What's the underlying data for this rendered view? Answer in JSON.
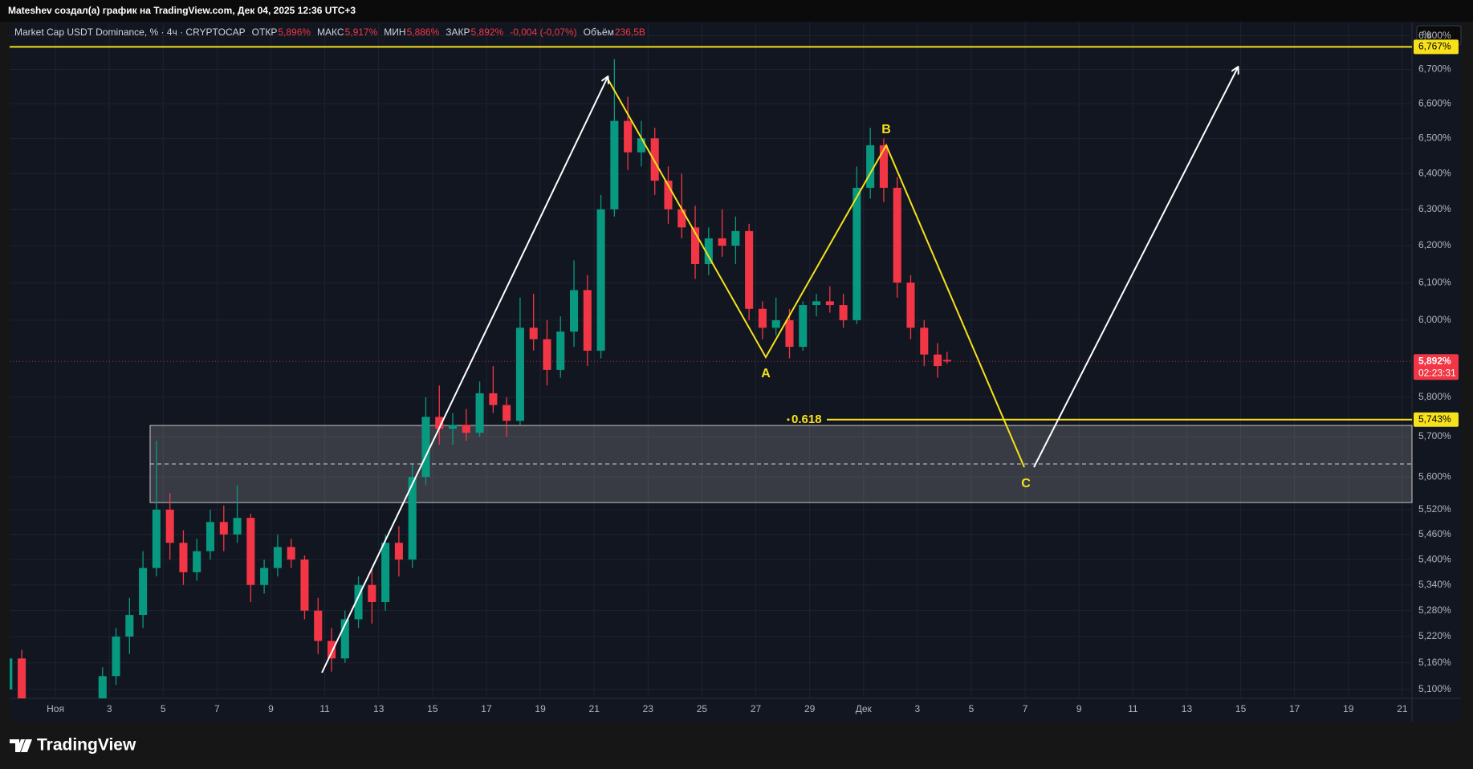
{
  "header": "Mateshev создал(а) график на TradingView.com, Дек 04, 2025 12:36 UTC+3",
  "logo": "TradingView",
  "chart_data": {
    "type": "candlestick",
    "title": "Market Cap USDT Dominance, % · 4ч · CRYPTOCAP",
    "ohlc_legend": [
      {
        "label": "ОТКР",
        "value": "5,896%"
      },
      {
        "label": "МАКС",
        "value": "5,917%"
      },
      {
        "label": "МИН",
        "value": "5,886%"
      },
      {
        "label": "ЗАКР",
        "value": "5,892%"
      }
    ],
    "change": "-0,004 (-0,07%)",
    "volume": {
      "label": "Объём",
      "value": "236,5B"
    },
    "axis_unit": "%",
    "x": [
      -0.75,
      -0.25,
      2.75,
      3.25,
      3.75,
      4.25,
      4.75,
      5.25,
      5.75,
      6.25,
      6.75,
      7.25,
      7.75,
      8.25,
      8.75,
      9.25,
      9.75,
      10.25,
      10.75,
      11.25,
      11.75,
      12.25,
      12.75,
      13.25,
      13.75,
      14.25,
      14.75,
      15.25,
      15.75,
      16.25,
      16.75,
      17.25,
      17.75,
      18.25,
      18.75,
      19.25,
      19.75,
      20.25,
      20.75,
      21.25,
      21.75,
      22.25,
      22.75,
      23.25,
      23.75,
      24.25,
      24.75,
      25.25,
      25.75,
      26.25,
      26.75,
      27.25,
      27.75,
      28.25,
      28.75,
      29.25,
      29.75,
      30.25,
      30.75,
      31.25,
      31.75,
      32.25,
      32.75,
      33.25,
      33.75,
      34.1
    ],
    "open": [
      5.1,
      5.17,
      5.08,
      5.13,
      5.22,
      5.27,
      5.38,
      5.52,
      5.44,
      5.37,
      5.42,
      5.49,
      5.46,
      5.5,
      5.34,
      5.38,
      5.43,
      5.4,
      5.28,
      5.21,
      5.17,
      5.26,
      5.34,
      5.3,
      5.44,
      5.4,
      5.6,
      5.75,
      5.72,
      5.73,
      5.71,
      5.81,
      5.78,
      5.74,
      5.98,
      5.95,
      5.87,
      5.97,
      6.08,
      5.92,
      6.3,
      6.55,
      6.46,
      6.5,
      6.38,
      6.3,
      6.25,
      6.15,
      6.22,
      6.2,
      6.24,
      6.03,
      5.98,
      6.0,
      5.93,
      6.04,
      6.05,
      6.04,
      6.0,
      6.36,
      6.48,
      6.36,
      6.1,
      5.98,
      5.91,
      5.896
    ],
    "high": [
      5.18,
      5.19,
      5.15,
      5.24,
      5.31,
      5.42,
      5.69,
      5.56,
      5.47,
      5.45,
      5.52,
      5.53,
      5.58,
      5.51,
      5.4,
      5.46,
      5.45,
      5.41,
      5.31,
      5.24,
      5.28,
      5.36,
      5.38,
      5.46,
      5.48,
      5.63,
      5.8,
      5.83,
      5.76,
      5.77,
      5.84,
      5.88,
      5.8,
      6.06,
      6.07,
      6.0,
      6.01,
      6.16,
      6.12,
      6.34,
      6.73,
      6.62,
      6.55,
      6.53,
      6.42,
      6.4,
      6.31,
      6.25,
      6.3,
      6.28,
      6.26,
      6.05,
      6.06,
      6.03,
      6.05,
      6.07,
      6.09,
      6.07,
      6.42,
      6.53,
      6.5,
      6.39,
      6.12,
      6.0,
      5.94,
      5.917
    ],
    "low": [
      5.07,
      5.05,
      5.06,
      5.11,
      5.18,
      5.24,
      5.36,
      5.4,
      5.34,
      5.35,
      5.4,
      5.42,
      5.44,
      5.3,
      5.32,
      5.36,
      5.38,
      5.26,
      5.18,
      5.14,
      5.16,
      5.24,
      5.25,
      5.28,
      5.36,
      5.38,
      5.58,
      5.68,
      5.68,
      5.69,
      5.7,
      5.76,
      5.7,
      5.73,
      5.92,
      5.83,
      5.85,
      5.93,
      5.88,
      5.9,
      6.28,
      6.41,
      6.42,
      6.34,
      6.26,
      6.22,
      6.11,
      6.12,
      6.17,
      6.15,
      6.0,
      5.95,
      5.96,
      5.9,
      5.92,
      6.01,
      6.02,
      5.98,
      5.99,
      6.33,
      6.32,
      6.06,
      5.95,
      5.88,
      5.85,
      5.886
    ],
    "close": [
      5.17,
      5.06,
      5.13,
      5.22,
      5.27,
      5.38,
      5.52,
      5.44,
      5.37,
      5.42,
      5.49,
      5.46,
      5.5,
      5.34,
      5.38,
      5.43,
      5.4,
      5.28,
      5.21,
      5.17,
      5.26,
      5.34,
      5.3,
      5.44,
      5.4,
      5.6,
      5.75,
      5.72,
      5.73,
      5.71,
      5.81,
      5.78,
      5.74,
      5.98,
      5.95,
      5.87,
      5.97,
      6.08,
      5.92,
      6.3,
      6.55,
      6.46,
      6.5,
      6.38,
      6.3,
      6.25,
      6.15,
      6.22,
      6.2,
      6.24,
      6.03,
      5.98,
      6.0,
      5.93,
      6.04,
      6.05,
      6.04,
      6.0,
      6.36,
      6.48,
      6.36,
      6.1,
      5.98,
      5.91,
      5.88,
      5.892
    ],
    "up_color": "#089981",
    "down_color": "#f23645",
    "xlim": [
      -0.7,
      51.36
    ],
    "xticks": [
      {
        "value": 1,
        "label": "Ноя"
      },
      3,
      5,
      7,
      9,
      11,
      13,
      15,
      17,
      19,
      21,
      23,
      25,
      27,
      29,
      {
        "value": 31,
        "label": "Дек"
      },
      {
        "value": 33,
        "label": "3"
      },
      {
        "value": 35,
        "label": "5"
      },
      {
        "value": 37,
        "label": "7"
      },
      {
        "value": 39,
        "label": "9"
      },
      {
        "value": 41,
        "label": "11"
      },
      {
        "value": 43,
        "label": "13"
      },
      {
        "value": 45,
        "label": "15"
      },
      {
        "value": 47,
        "label": "17"
      },
      {
        "value": 49,
        "label": "19"
      },
      {
        "value": 51,
        "label": "21"
      }
    ],
    "ylim": [
      5.08,
      6.84
    ],
    "log_scale": true,
    "grid": true,
    "yticks": [
      {
        "value": 5.1,
        "label": "5,100%"
      },
      {
        "value": 5.16,
        "label": "5,160%"
      },
      {
        "value": 5.22,
        "label": "5,220%"
      },
      {
        "value": 5.28,
        "label": "5,280%"
      },
      {
        "value": 5.34,
        "label": "5,340%"
      },
      {
        "value": 5.4,
        "label": "5,400%"
      },
      {
        "value": 5.46,
        "label": "5,460%"
      },
      {
        "value": 5.52,
        "label": "5,520%"
      },
      {
        "value": 5.6,
        "label": "5,600%"
      },
      {
        "value": 5.7,
        "label": "5,700%"
      },
      {
        "value": 5.8,
        "label": "5,800%"
      },
      {
        "value": 6.0,
        "label": "6,000%"
      },
      {
        "value": 6.1,
        "label": "6,100%"
      },
      {
        "value": 6.2,
        "label": "6,200%"
      },
      {
        "value": 6.3,
        "label": "6,300%"
      },
      {
        "value": 6.4,
        "label": "6,400%"
      },
      {
        "value": 6.5,
        "label": "6,500%"
      },
      {
        "value": 6.6,
        "label": "6,600%"
      },
      {
        "value": 6.7,
        "label": "6,700%"
      },
      {
        "value": 6.8,
        "label": "6,800%"
      }
    ],
    "levels": [
      {
        "value": 6.767,
        "label": "6,767%",
        "color": "#f7e11b"
      },
      {
        "value": 5.743,
        "label": "5,743%",
        "color": "#f7e11b",
        "fib": "0.618"
      }
    ],
    "last_price": {
      "value": 5.892,
      "label": "5,892%",
      "countdown": "02:23:31",
      "color": "#f23645"
    },
    "wave_labels": [
      "A",
      "B",
      "C"
    ]
  }
}
